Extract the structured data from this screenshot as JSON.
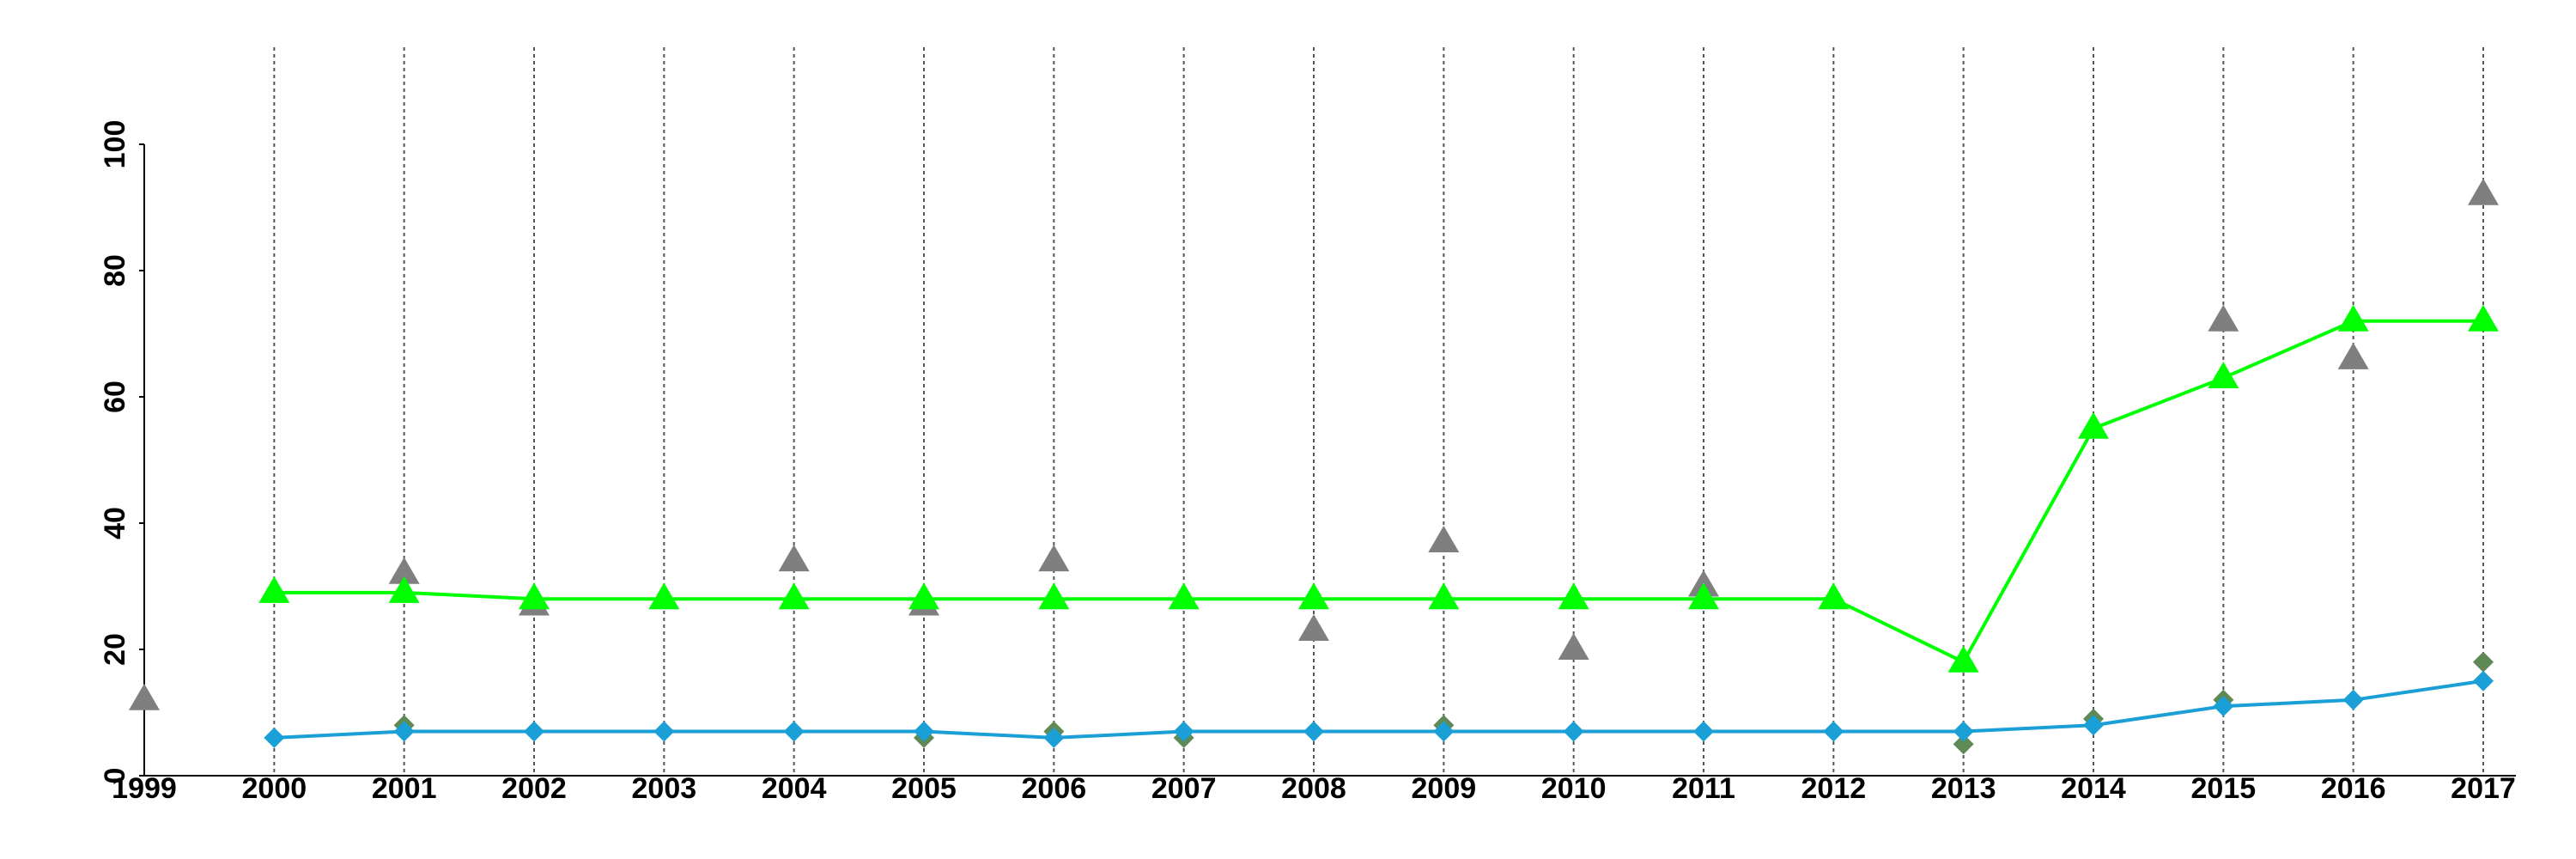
{
  "chart_data": {
    "type": "line",
    "x": [
      1999,
      2000,
      2001,
      2002,
      2003,
      2004,
      2005,
      2006,
      2007,
      2008,
      2009,
      2010,
      2011,
      2012,
      2013,
      2014,
      2015,
      2016,
      2017
    ],
    "xlim": [
      1999,
      2017
    ],
    "ylim": [
      0,
      100
    ],
    "yticks": [
      0,
      20,
      40,
      60,
      80,
      100
    ],
    "grid": true,
    "series": [
      {
        "type": "scatter",
        "marker": "triangle",
        "color": "#7f7f7f",
        "values": [
          12,
          null,
          32,
          27,
          null,
          34,
          27,
          34,
          null,
          23,
          37,
          20,
          30,
          null,
          null,
          null,
          72,
          66,
          92
        ]
      },
      {
        "type": "scatter",
        "marker": "diamond",
        "color": "#5f8a55",
        "values": [
          null,
          null,
          8,
          null,
          null,
          null,
          6,
          7,
          6,
          null,
          8,
          null,
          null,
          null,
          5,
          9,
          12,
          null,
          18
        ]
      },
      {
        "type": "line",
        "marker": "triangle",
        "color": "#00ff00",
        "values": [
          null,
          29,
          29,
          28,
          28,
          28,
          28,
          28,
          28,
          28,
          28,
          28,
          28,
          28,
          18,
          55,
          63,
          72,
          72
        ]
      },
      {
        "type": "line",
        "marker": "diamond",
        "color": "#1a9fd6",
        "values": [
          null,
          6,
          7,
          7,
          7,
          7,
          7,
          6,
          7,
          7,
          7,
          7,
          7,
          7,
          7,
          8,
          11,
          12,
          15
        ]
      }
    ]
  }
}
